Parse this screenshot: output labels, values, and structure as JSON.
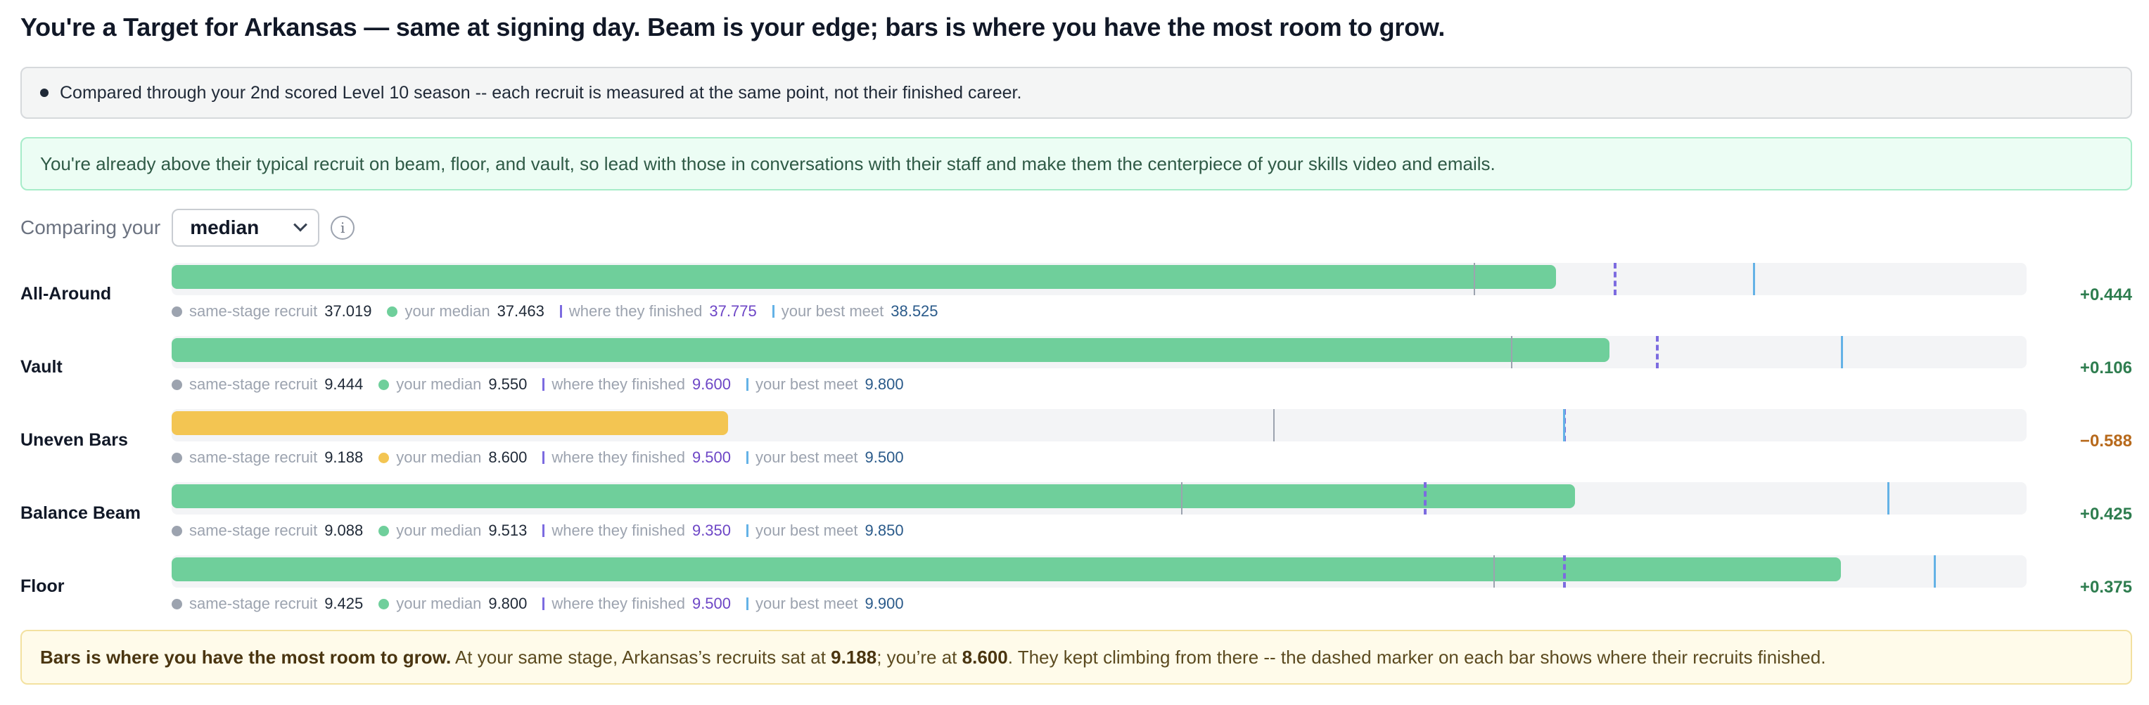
{
  "headline": "You're a Target for Arkansas — same at signing day. Beam is your edge; bars is where you have the most room to grow.",
  "note": "Compared through your 2nd scored Level 10 season -- each recruit is measured at the same point, not their finished career.",
  "advice": "You're already above their typical recruit on beam, floor, and vault, so lead with those in conversations with their staff and make them the centerpiece of your skills video and emails.",
  "compare": {
    "label": "Comparing your",
    "selected": "median",
    "info_glyph": "i"
  },
  "legend_labels": {
    "same_stage": "same-stage recruit",
    "your_median": "your median",
    "finished": "where they finished",
    "best": "your best meet"
  },
  "colors": {
    "ahead": "#6fcf9b",
    "behind": "#f3c552",
    "delta_positive": "#2e7d4f",
    "delta_negative": "#b7691b"
  },
  "events": [
    {
      "name": "All-Around",
      "scale_min": 30.0,
      "scale_max": 40.0,
      "same_stage": "37.019",
      "your_median": "37.463",
      "finished": "37.775",
      "best": "38.525",
      "delta": "+0.444",
      "status": "ahead"
    },
    {
      "name": "Vault",
      "scale_min": 8.0,
      "scale_max": 10.0,
      "same_stage": "9.444",
      "your_median": "9.550",
      "finished": "9.600",
      "best": "9.800",
      "delta": "+0.106",
      "status": "ahead"
    },
    {
      "name": "Uneven Bars",
      "scale_min": 8.0,
      "scale_max": 10.0,
      "same_stage": "9.188",
      "your_median": "8.600",
      "finished": "9.500",
      "best": "9.500",
      "delta": "−0.588",
      "status": "behind"
    },
    {
      "name": "Balance Beam",
      "scale_min": 8.0,
      "scale_max": 10.0,
      "same_stage": "9.088",
      "your_median": "9.513",
      "finished": "9.350",
      "best": "9.850",
      "delta": "+0.425",
      "status": "ahead"
    },
    {
      "name": "Floor",
      "scale_min": 8.0,
      "scale_max": 10.0,
      "same_stage": "9.425",
      "your_median": "9.800",
      "finished": "9.500",
      "best": "9.900",
      "delta": "+0.375",
      "status": "ahead"
    }
  ],
  "callout": {
    "lead": "Bars is where you have the most room to grow.",
    "t1": " At your same stage, Arkansas’s recruits sat at ",
    "v1": "9.188",
    "t2": "; you’re at ",
    "v2": "8.600",
    "t3": ". They kept climbing from there -- the dashed marker on each bar shows where their recruits finished."
  }
}
